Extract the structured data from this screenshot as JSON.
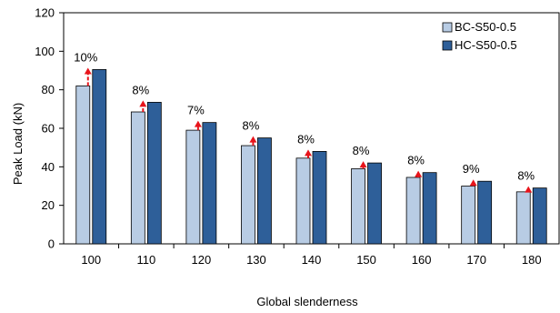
{
  "chart_data": {
    "type": "bar",
    "xlabel": "Global slenderness",
    "ylabel": "Peak Load (kN)",
    "ylim": [
      0,
      120
    ],
    "yticks": [
      0,
      20,
      40,
      60,
      80,
      100,
      120
    ],
    "grid": false,
    "legend_position": "top-right",
    "categories": [
      "100",
      "110",
      "120",
      "130",
      "140",
      "150",
      "160",
      "170",
      "180"
    ],
    "series": [
      {
        "name": "BC-S50-0.5",
        "color": "#b8cce4",
        "values": [
          82,
          68.5,
          59,
          51,
          44.5,
          39,
          34.5,
          30,
          27
        ]
      },
      {
        "name": "HC-S50-0.5",
        "color": "#2e5f99",
        "values": [
          90.5,
          73.5,
          63,
          55,
          48,
          42,
          37,
          32.5,
          29
        ]
      }
    ],
    "annotations": {
      "labels": [
        "10%",
        "8%",
        "7%",
        "8%",
        "8%",
        "8%",
        "8%",
        "9%",
        "8%"
      ],
      "arrow_color": "#e8141b"
    }
  }
}
